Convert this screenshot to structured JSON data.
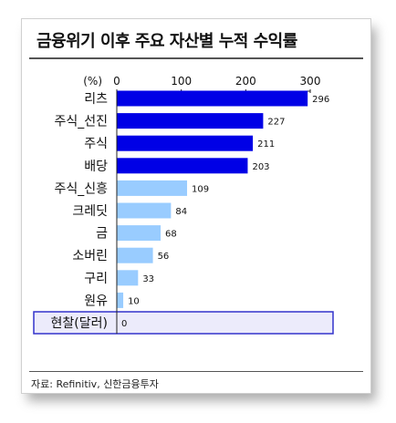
{
  "title": "금융위기 이후 주요 자산별 누적 수익률",
  "source": "자료: Refinitiv, 신한금융투자",
  "colors": {
    "dark_bar": "#0000e6",
    "light_bar": "#99ccff",
    "highlight_border": "#3333cc",
    "highlight_fill": "#ecebfb"
  },
  "chart_data": {
    "type": "bar",
    "orientation": "horizontal",
    "axis_unit_label": "(%)",
    "xlim": [
      0,
      300
    ],
    "ticks": [
      0,
      100,
      200,
      300
    ],
    "categories": [
      "리츠",
      "주식_선진",
      "주식",
      "배당",
      "주식_신흥",
      "크레딧",
      "금",
      "소버린",
      "구리",
      "원유",
      "현찰(달러)"
    ],
    "values": [
      296,
      227,
      211,
      203,
      109,
      84,
      68,
      56,
      33,
      10,
      0
    ],
    "bar_shade": [
      "dark",
      "dark",
      "dark",
      "dark",
      "light",
      "light",
      "light",
      "light",
      "light",
      "light",
      "light"
    ],
    "highlighted_category": "현찰(달러)",
    "grid": false,
    "legend": "none"
  }
}
